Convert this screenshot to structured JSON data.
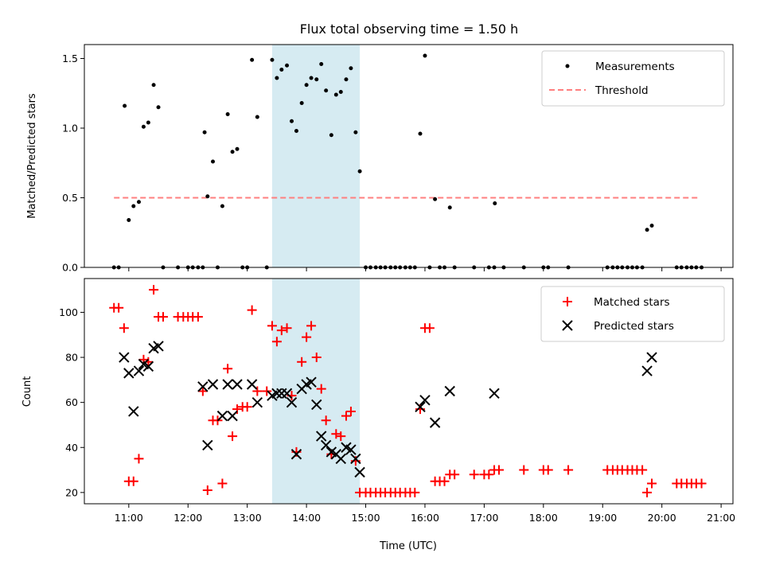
{
  "chart_data": [
    {
      "type": "scatter",
      "title": "Flux total observing time = 1.50 h",
      "xlabel": "",
      "ylabel": "Matched/Predicted stars",
      "xlim": [
        10.25,
        21.2
      ],
      "ylim": [
        0,
        1.6
      ],
      "yticks": [
        0,
        0.5,
        1.0,
        1.5
      ],
      "ytick_labels": [
        "0.0",
        "0.5",
        "1.0",
        "1.5"
      ],
      "xticks": [
        11,
        12,
        13,
        14,
        15,
        16,
        17,
        18,
        19,
        20,
        21
      ],
      "xtick_labels": [],
      "shaded_interval": [
        13.42,
        14.9
      ],
      "threshold": {
        "name": "Threshold",
        "x": [
          10.75,
          20.65
        ],
        "y": 0.5,
        "color": "#ff7f7f"
      },
      "legend": {
        "placement": "upper right",
        "entries": [
          "Measurements",
          "Threshold"
        ]
      },
      "series": [
        {
          "name": "Measurements",
          "color": "#000000",
          "points": [
            [
              10.75,
              0
            ],
            [
              10.83,
              0
            ],
            [
              10.93,
              1.16
            ],
            [
              11.0,
              0.34
            ],
            [
              11.08,
              0.44
            ],
            [
              11.17,
              0.47
            ],
            [
              11.25,
              1.01
            ],
            [
              11.33,
              1.04
            ],
            [
              11.42,
              1.31
            ],
            [
              11.5,
              1.15
            ],
            [
              11.58,
              0
            ],
            [
              11.83,
              0
            ],
            [
              12.0,
              0
            ],
            [
              12.08,
              0
            ],
            [
              12.17,
              0
            ],
            [
              12.25,
              0
            ],
            [
              12.28,
              0.97
            ],
            [
              12.33,
              0.51
            ],
            [
              12.42,
              0.76
            ],
            [
              12.5,
              0
            ],
            [
              12.58,
              0.44
            ],
            [
              12.67,
              1.1
            ],
            [
              12.75,
              0.83
            ],
            [
              12.83,
              0.85
            ],
            [
              12.92,
              0
            ],
            [
              13.0,
              0
            ],
            [
              13.08,
              1.49
            ],
            [
              13.17,
              1.08
            ],
            [
              13.33,
              0
            ],
            [
              13.42,
              1.49
            ],
            [
              13.5,
              1.36
            ],
            [
              13.58,
              1.42
            ],
            [
              13.67,
              1.45
            ],
            [
              13.75,
              1.05
            ],
            [
              13.83,
              0.98
            ],
            [
              13.92,
              1.18
            ],
            [
              14.0,
              1.31
            ],
            [
              14.08,
              1.36
            ],
            [
              14.17,
              1.35
            ],
            [
              14.25,
              1.46
            ],
            [
              14.33,
              1.27
            ],
            [
              14.42,
              0.95
            ],
            [
              14.5,
              1.24
            ],
            [
              14.58,
              1.26
            ],
            [
              14.67,
              1.35
            ],
            [
              14.75,
              1.43
            ],
            [
              14.83,
              0.97
            ],
            [
              14.9,
              0.69
            ],
            [
              15.0,
              0
            ],
            [
              15.08,
              0
            ],
            [
              15.17,
              0
            ],
            [
              15.25,
              0
            ],
            [
              15.33,
              0
            ],
            [
              15.42,
              0
            ],
            [
              15.5,
              0
            ],
            [
              15.58,
              0
            ],
            [
              15.67,
              0
            ],
            [
              15.75,
              0
            ],
            [
              15.83,
              0
            ],
            [
              15.92,
              0.96
            ],
            [
              16.0,
              1.52
            ],
            [
              16.08,
              0
            ],
            [
              16.17,
              0.49
            ],
            [
              16.25,
              0
            ],
            [
              16.33,
              0
            ],
            [
              16.42,
              0.43
            ],
            [
              16.5,
              0
            ],
            [
              16.83,
              0
            ],
            [
              17.08,
              0
            ],
            [
              17.17,
              0
            ],
            [
              17.18,
              0.46
            ],
            [
              17.33,
              0
            ],
            [
              17.67,
              0
            ],
            [
              18.0,
              0
            ],
            [
              18.08,
              0
            ],
            [
              18.42,
              0
            ],
            [
              19.08,
              0
            ],
            [
              19.17,
              0
            ],
            [
              19.25,
              0
            ],
            [
              19.33,
              0
            ],
            [
              19.42,
              0
            ],
            [
              19.5,
              0
            ],
            [
              19.58,
              0
            ],
            [
              19.67,
              0
            ],
            [
              19.75,
              0.27
            ],
            [
              19.83,
              0.3
            ],
            [
              20.25,
              0
            ],
            [
              20.33,
              0
            ],
            [
              20.42,
              0
            ],
            [
              20.5,
              0
            ],
            [
              20.58,
              0
            ],
            [
              20.67,
              0
            ]
          ]
        }
      ]
    },
    {
      "type": "scatter",
      "title": "",
      "xlabel": "Time (UTC)",
      "ylabel": "Count",
      "xlim": [
        10.25,
        21.2
      ],
      "ylim": [
        15,
        115
      ],
      "yticks": [
        20,
        40,
        60,
        80,
        100
      ],
      "ytick_labels": [
        "20",
        "40",
        "60",
        "80",
        "100"
      ],
      "xticks": [
        11,
        12,
        13,
        14,
        15,
        16,
        17,
        18,
        19,
        20,
        21
      ],
      "xtick_labels": [
        "11:00",
        "12:00",
        "13:00",
        "14:00",
        "15:00",
        "16:00",
        "17:00",
        "18:00",
        "19:00",
        "20:00",
        "21:00"
      ],
      "shaded_interval": [
        13.42,
        14.9
      ],
      "legend": {
        "placement": "upper right",
        "entries": [
          "Matched stars",
          "Predicted stars"
        ]
      },
      "series": [
        {
          "name": "Matched stars",
          "marker": "+",
          "color": "#ff0000",
          "points": [
            [
              10.75,
              102
            ],
            [
              10.83,
              102
            ],
            [
              10.92,
              93
            ],
            [
              11.0,
              25
            ],
            [
              11.08,
              25
            ],
            [
              11.17,
              35
            ],
            [
              11.25,
              79
            ],
            [
              11.33,
              78
            ],
            [
              11.42,
              110
            ],
            [
              11.5,
              98
            ],
            [
              11.58,
              98
            ],
            [
              11.83,
              98
            ],
            [
              11.92,
              98
            ],
            [
              12.0,
              98
            ],
            [
              12.08,
              98
            ],
            [
              12.17,
              98
            ],
            [
              12.25,
              65
            ],
            [
              12.33,
              21
            ],
            [
              12.42,
              52
            ],
            [
              12.5,
              52
            ],
            [
              12.58,
              24
            ],
            [
              12.67,
              75
            ],
            [
              12.75,
              45
            ],
            [
              12.83,
              57
            ],
            [
              12.92,
              58
            ],
            [
              13.0,
              58
            ],
            [
              13.08,
              101
            ],
            [
              13.17,
              65
            ],
            [
              13.33,
              65
            ],
            [
              13.42,
              94
            ],
            [
              13.5,
              87
            ],
            [
              13.58,
              92
            ],
            [
              13.67,
              93
            ],
            [
              13.75,
              63
            ],
            [
              13.83,
              38
            ],
            [
              13.92,
              78
            ],
            [
              14.0,
              89
            ],
            [
              14.08,
              94
            ],
            [
              14.17,
              80
            ],
            [
              14.25,
              66
            ],
            [
              14.33,
              52
            ],
            [
              14.42,
              37
            ],
            [
              14.5,
              46
            ],
            [
              14.58,
              45
            ],
            [
              14.67,
              54
            ],
            [
              14.75,
              56
            ],
            [
              14.83,
              34
            ],
            [
              14.9,
              20
            ],
            [
              15.0,
              20
            ],
            [
              15.08,
              20
            ],
            [
              15.17,
              20
            ],
            [
              15.25,
              20
            ],
            [
              15.33,
              20
            ],
            [
              15.42,
              20
            ],
            [
              15.5,
              20
            ],
            [
              15.58,
              20
            ],
            [
              15.67,
              20
            ],
            [
              15.75,
              20
            ],
            [
              15.83,
              20
            ],
            [
              15.92,
              57
            ],
            [
              16.0,
              93
            ],
            [
              16.08,
              93
            ],
            [
              16.17,
              25
            ],
            [
              16.25,
              25
            ],
            [
              16.33,
              25
            ],
            [
              16.42,
              28
            ],
            [
              16.5,
              28
            ],
            [
              16.83,
              28
            ],
            [
              17.0,
              28
            ],
            [
              17.08,
              28
            ],
            [
              17.17,
              30
            ],
            [
              17.25,
              30
            ],
            [
              17.67,
              30
            ],
            [
              18.0,
              30
            ],
            [
              18.08,
              30
            ],
            [
              18.42,
              30
            ],
            [
              19.08,
              30
            ],
            [
              19.17,
              30
            ],
            [
              19.25,
              30
            ],
            [
              19.33,
              30
            ],
            [
              19.42,
              30
            ],
            [
              19.5,
              30
            ],
            [
              19.58,
              30
            ],
            [
              19.67,
              30
            ],
            [
              19.75,
              20
            ],
            [
              19.83,
              24
            ],
            [
              20.25,
              24
            ],
            [
              20.33,
              24
            ],
            [
              20.42,
              24
            ],
            [
              20.5,
              24
            ],
            [
              20.58,
              24
            ],
            [
              20.67,
              24
            ]
          ]
        },
        {
          "name": "Predicted stars",
          "marker": "x",
          "color": "#000000",
          "points": [
            [
              10.92,
              80
            ],
            [
              11.0,
              73
            ],
            [
              11.08,
              56
            ],
            [
              11.17,
              74
            ],
            [
              11.25,
              77
            ],
            [
              11.33,
              76
            ],
            [
              11.42,
              84
            ],
            [
              11.5,
              85
            ],
            [
              12.25,
              67
            ],
            [
              12.33,
              41
            ],
            [
              12.42,
              68
            ],
            [
              12.58,
              54
            ],
            [
              12.67,
              68
            ],
            [
              12.75,
              54
            ],
            [
              12.83,
              68
            ],
            [
              13.08,
              68
            ],
            [
              13.17,
              60
            ],
            [
              13.42,
              63
            ],
            [
              13.5,
              64
            ],
            [
              13.58,
              64
            ],
            [
              13.67,
              64
            ],
            [
              13.75,
              60
            ],
            [
              13.83,
              37
            ],
            [
              13.92,
              66
            ],
            [
              14.0,
              68
            ],
            [
              14.08,
              69
            ],
            [
              14.17,
              59
            ],
            [
              14.25,
              45
            ],
            [
              14.33,
              41
            ],
            [
              14.42,
              38
            ],
            [
              14.5,
              37
            ],
            [
              14.58,
              35
            ],
            [
              14.67,
              40
            ],
            [
              14.75,
              39
            ],
            [
              14.83,
              35
            ],
            [
              14.9,
              29
            ],
            [
              15.92,
              58
            ],
            [
              16.0,
              61
            ],
            [
              16.17,
              51
            ],
            [
              16.42,
              65
            ],
            [
              17.17,
              64
            ],
            [
              19.75,
              74
            ],
            [
              19.83,
              80
            ]
          ]
        }
      ]
    }
  ]
}
